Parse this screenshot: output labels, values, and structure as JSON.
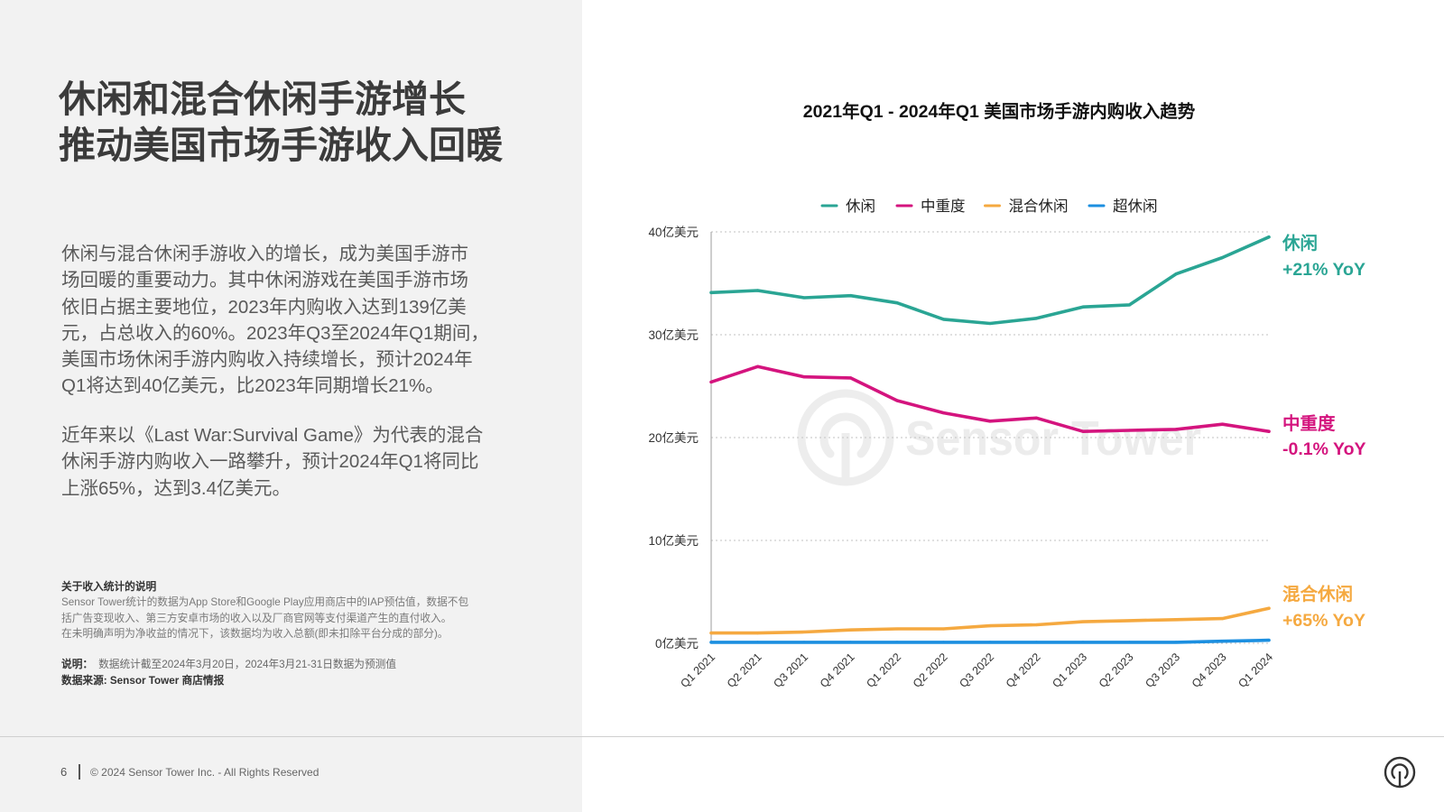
{
  "left": {
    "title_lines": [
      "休闲和混合休闲手游增长",
      "推动美国市场手游收入回暖"
    ],
    "paragraph1_lines": [
      "休闲与混合休闲手游收入的增长，成为美国手游市",
      "场回暖的重要动力。其中休闲游戏在美国手游市场",
      "依旧占据主要地位，2023年内购收入达到139亿美",
      "元，占总收入的60%。2023年Q3至2024年Q1期间，",
      "美国市场休闲手游内购收入持续增长，预计2024年",
      "Q1将达到40亿美元，比2023年同期增长21%。"
    ],
    "paragraph2_lines": [
      "近年来以《Last War:Survival Game》为代表的混合",
      "休闲手游内购收入一路攀升，预计2024年Q1将同比",
      "上涨65%，达到3.4亿美元。"
    ],
    "note": {
      "heading": "关于收入统计的说明",
      "lines": [
        "Sensor Tower统计的数据为App Store和Google Play应用商店中的IAP预估值，数据不包",
        "括广告变现收入、第三方安卓市场的收入以及厂商官网等支付渠道产生的直付收入。",
        "在未明确声明为净收益的情况下，该数据均为收入总额(即未扣除平台分成的部分)。"
      ]
    },
    "remark_label": "说明：",
    "remark_text": "数据统计截至2024年3月20日，2024年3月21-31日数据为预测值",
    "source": "数据来源: Sensor Tower 商店情报"
  },
  "footer": {
    "page_number": "6",
    "copyright": "© 2024 Sensor Tower Inc. - All Rights Reserved",
    "logo_icon": "sensor-tower-logo-icon"
  },
  "watermark": "Sensor Tower",
  "chart_data": {
    "type": "line",
    "title": "2021年Q1 - 2024年Q1 美国市场手游内购收入趋势",
    "categories": [
      "Q1 2021",
      "Q2 2021",
      "Q3 2021",
      "Q4 2021",
      "Q1 2022",
      "Q2 2022",
      "Q3 2022",
      "Q4 2022",
      "Q1 2023",
      "Q2 2023",
      "Q3 2023",
      "Q4 2023",
      "Q1 2024"
    ],
    "ylim": [
      0,
      40
    ],
    "yticks": [
      0,
      10,
      20,
      30,
      40
    ],
    "ytick_labels": [
      "0亿美元",
      "10亿美元",
      "20亿美元",
      "30亿美元",
      "40亿美元"
    ],
    "grid": true,
    "legend": "top",
    "series": [
      {
        "name": "休闲",
        "color": "#2aa594",
        "values": [
          34.1,
          34.3,
          33.6,
          33.8,
          33.1,
          31.5,
          31.1,
          31.6,
          32.7,
          32.9,
          35.9,
          37.5,
          39.5
        ],
        "end_label": "休闲",
        "change": "+21% YoY"
      },
      {
        "name": "中重度",
        "color": "#d4147e",
        "values": [
          25.4,
          26.9,
          25.9,
          25.8,
          23.6,
          22.4,
          21.6,
          21.9,
          20.6,
          20.7,
          20.8,
          21.3,
          20.6
        ],
        "end_label": "中重度",
        "change": "-0.1% YoY"
      },
      {
        "name": "混合休闲",
        "color": "#f5a940",
        "values": [
          1.0,
          1.0,
          1.1,
          1.3,
          1.4,
          1.4,
          1.7,
          1.8,
          2.1,
          2.2,
          2.3,
          2.4,
          3.4
        ],
        "end_label": "混合休闲",
        "change": "+65% YoY"
      },
      {
        "name": "超休闲",
        "color": "#1c8fe0",
        "values": [
          0.1,
          0.1,
          0.1,
          0.1,
          0.1,
          0.1,
          0.1,
          0.1,
          0.1,
          0.1,
          0.1,
          0.2,
          0.3
        ]
      }
    ]
  }
}
